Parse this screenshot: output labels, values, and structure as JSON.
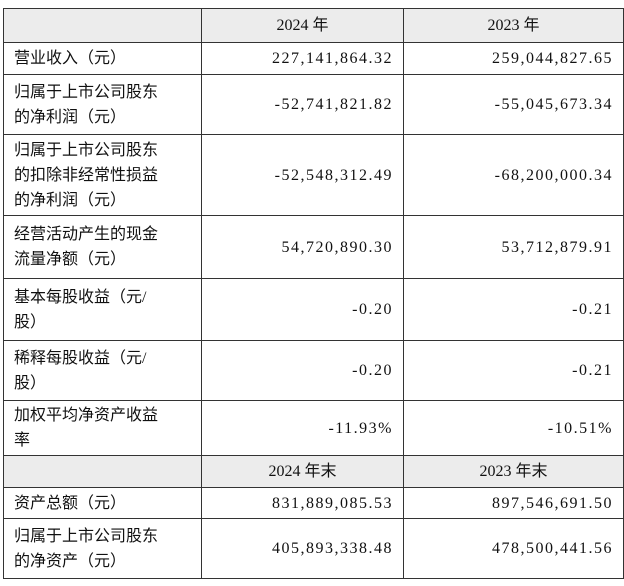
{
  "table": {
    "sections": [
      {
        "header": [
          "",
          "2024 年",
          "2023 年"
        ],
        "rows": [
          [
            "营业收入（元）",
            "227,141,864.32",
            "259,044,827.65"
          ],
          [
            "归属于上市公司股东\n的净利润（元）",
            "-52,741,821.82",
            "-55,045,673.34"
          ],
          [
            "归属于上市公司股东\n的扣除非经常性损益\n的净利润（元）",
            "-52,548,312.49",
            "-68,200,000.34"
          ],
          [
            "经营活动产生的现金\n流量净额（元）",
            "54,720,890.30",
            "53,712,879.91"
          ],
          [
            "基本每股收益（元/\n股）",
            "-0.20",
            "-0.21"
          ],
          [
            "稀释每股收益（元/\n股）",
            "-0.20",
            "-0.21"
          ],
          [
            "加权平均净资产收益\n率",
            "-11.93%",
            "-10.51%"
          ]
        ]
      },
      {
        "header": [
          "",
          "2024 年末",
          "2023 年末"
        ],
        "rows": [
          [
            "资产总额（元）",
            "831,889,085.53",
            "897,546,691.50"
          ],
          [
            "归属于上市公司股东\n的净资产（元）",
            "405,893,338.48",
            "478,500,441.56"
          ]
        ]
      }
    ]
  }
}
